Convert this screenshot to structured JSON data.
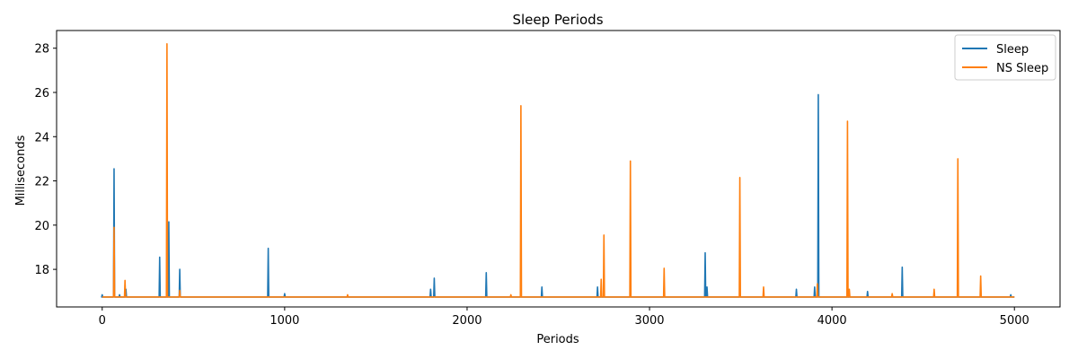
{
  "chart_data": {
    "type": "line",
    "title": "Sleep Periods",
    "xlabel": "Periods",
    "ylabel": "Milliseconds",
    "xlim": [
      -250,
      5250
    ],
    "ylim": [
      16.3,
      28.8
    ],
    "x_ticks": [
      0,
      1000,
      2000,
      3000,
      4000,
      5000
    ],
    "y_ticks": [
      18,
      20,
      22,
      24,
      26,
      28
    ],
    "grid": false,
    "legend_position": "top-right",
    "baseline": 16.75,
    "x_range": [
      0,
      5000
    ],
    "series": [
      {
        "name": "Sleep",
        "color": "#1f77b4",
        "spikes": [
          [
            0,
            16.85
          ],
          [
            65,
            22.55
          ],
          [
            95,
            16.85
          ],
          [
            130,
            17.1
          ],
          [
            315,
            18.55
          ],
          [
            365,
            20.15
          ],
          [
            425,
            18.0
          ],
          [
            910,
            18.95
          ],
          [
            1000,
            16.9
          ],
          [
            1800,
            17.1
          ],
          [
            1820,
            17.6
          ],
          [
            2105,
            17.85
          ],
          [
            2410,
            17.2
          ],
          [
            2715,
            17.2
          ],
          [
            3305,
            18.75
          ],
          [
            3315,
            17.2
          ],
          [
            3805,
            17.1
          ],
          [
            3905,
            17.2
          ],
          [
            3925,
            25.9
          ],
          [
            4195,
            17.0
          ],
          [
            4385,
            18.1
          ],
          [
            4980,
            16.85
          ]
        ]
      },
      {
        "name": "NS Sleep",
        "color": "#ff7f0e",
        "spikes": [
          [
            65,
            19.9
          ],
          [
            125,
            17.5
          ],
          [
            355,
            28.2
          ],
          [
            425,
            17.05
          ],
          [
            1345,
            16.85
          ],
          [
            2240,
            16.85
          ],
          [
            2295,
            25.4
          ],
          [
            2735,
            17.55
          ],
          [
            2750,
            19.55
          ],
          [
            2895,
            22.9
          ],
          [
            3080,
            18.05
          ],
          [
            3495,
            22.15
          ],
          [
            3625,
            17.2
          ],
          [
            3920,
            17.35
          ],
          [
            4085,
            24.7
          ],
          [
            4095,
            17.1
          ],
          [
            4330,
            16.9
          ],
          [
            4560,
            17.1
          ],
          [
            4690,
            23.0
          ],
          [
            4815,
            17.7
          ]
        ]
      }
    ]
  }
}
